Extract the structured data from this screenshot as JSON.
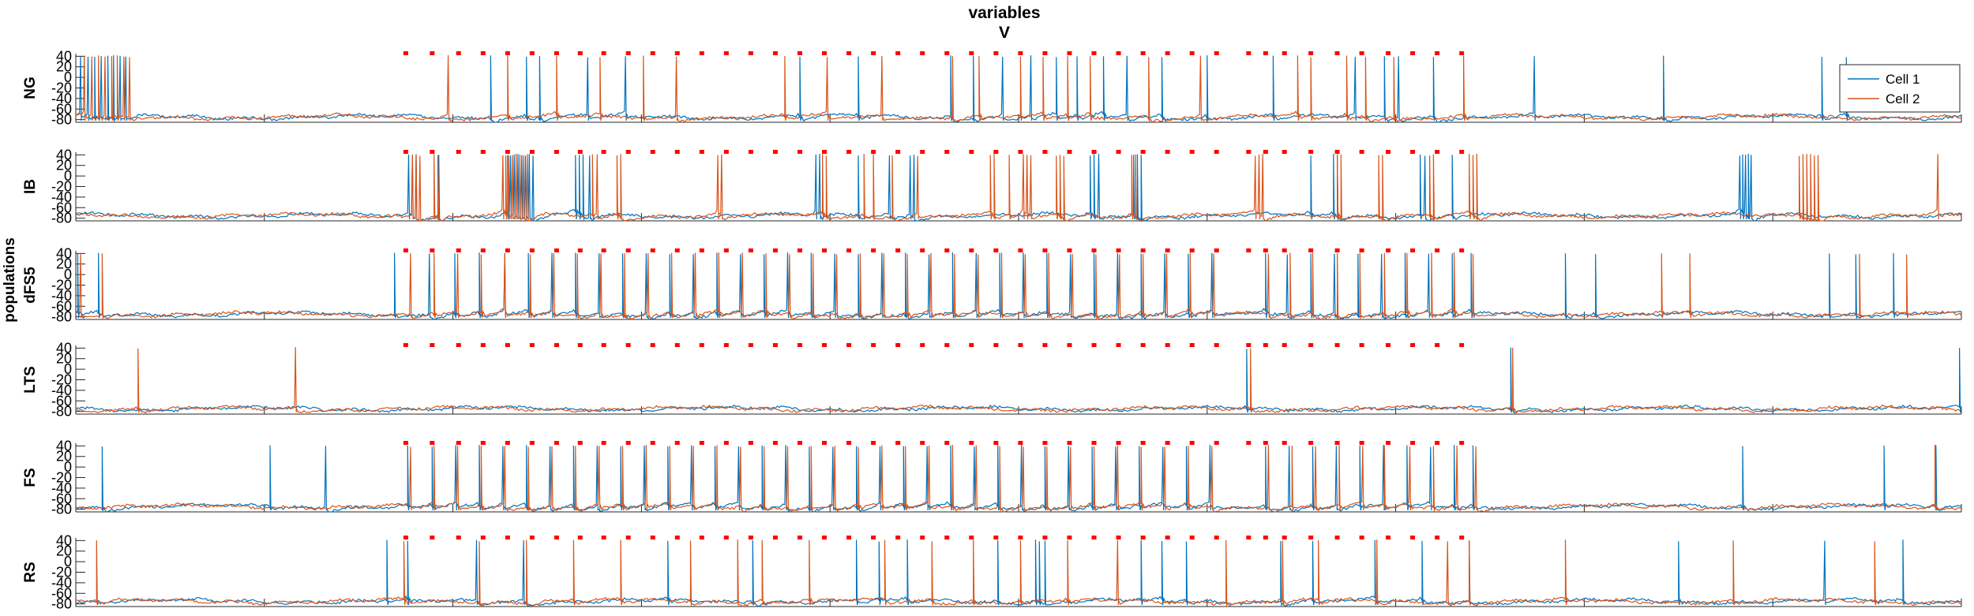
{
  "chart_data": {
    "type": "line",
    "title": "variables",
    "subtitle": "V",
    "ylabel": "populations",
    "xlim": [
      0,
      2000
    ],
    "ylim": [
      -85,
      45
    ],
    "x_ticks": [
      0,
      200,
      400,
      600,
      800,
      1000,
      1200,
      1400,
      1600,
      1800,
      2000
    ],
    "y_ticks": [
      40,
      20,
      0,
      -20,
      -40,
      -60,
      -80
    ],
    "legend": {
      "placement": "top-right",
      "entries": [
        "Cell 1",
        "Cell 2"
      ]
    },
    "colors": {
      "Cell 1": "#0072BD",
      "Cell 2": "#D95319",
      "markers": "#ff0000"
    },
    "panels": [
      {
        "name": "NG",
        "markers": [
          350,
          378,
          406,
          432,
          458,
          484,
          510,
          535,
          560,
          586,
          612,
          638,
          664,
          690,
          716,
          742,
          768,
          794,
          820,
          846,
          872,
          898,
          924,
          950,
          976,
          1002,
          1028,
          1054,
          1080,
          1106,
          1132,
          1158,
          1184,
          1210,
          1244,
          1262,
          1282,
          1310,
          1338,
          1364,
          1392,
          1418,
          1444,
          1470
        ],
        "series": [
          {
            "name": "Cell 1",
            "spikes": [
              5,
              13,
              20,
              27,
              34,
              40,
              47,
              53,
              440,
              478,
              492,
              543,
              583,
              768,
              830,
              928,
              952,
              983,
              1013,
              1040,
              1062,
              1090,
              1115,
              1152,
              1200,
              1270,
              1357,
              1388,
              1403,
              1440,
              1547,
              1684,
              1852,
              1878
            ]
          },
          {
            "name": "Cell 2",
            "spikes": [
              9,
              17,
              24,
              31,
              38,
              44,
              51,
              57,
              395,
              458,
              510,
              556,
              602,
              637,
              752,
              797,
              855,
              930,
              958,
              1002,
              1026,
              1052,
              1076,
              1138,
              1193,
              1296,
              1310,
              1348,
              1368,
              1398,
              1472
            ]
          }
        ]
      },
      {
        "name": "IB",
        "markers": [
          350,
          378,
          406,
          432,
          458,
          484,
          510,
          535,
          560,
          586,
          612,
          638,
          664,
          690,
          716,
          742,
          768,
          794,
          820,
          846,
          872,
          898,
          924,
          950,
          976,
          1002,
          1028,
          1054,
          1080,
          1106,
          1132,
          1158,
          1184,
          1210,
          1244,
          1262,
          1282,
          1310,
          1338,
          1364,
          1392,
          1418,
          1444,
          1470
        ],
        "series": [
          {
            "name": "Cell 1",
            "spikes": [
              353,
              357,
              361,
              385,
              458,
              461,
              465,
              469,
              473,
              477,
              481,
              485,
              530,
              534,
              538,
              545,
              785,
              789,
              830,
              863,
              885,
              889,
              1076,
              1080,
              1085,
              1122,
              1126,
              1130,
              1310,
              1334,
              1338,
              1426,
              1431,
              1460,
              1765,
              1768,
              1771,
              1774,
              1777
            ]
          },
          {
            "name": "Cell 2",
            "spikes": [
              357,
              361,
              365,
              380,
              384,
              453,
              456,
              459,
              463,
              467,
              471,
              475,
              479,
              548,
              553,
              574,
              578,
              681,
              685,
              792,
              796,
              836,
              846,
              866,
              893,
              970,
              974,
              990,
              1005,
              1009,
              1013,
              1040,
              1044,
              1048,
              1120,
              1124,
              1251,
              1255,
              1259,
              1338,
              1342,
              1382,
              1386,
              1436,
              1440,
              1478,
              1482,
              1486,
              1828,
              1832,
              1836,
              1840,
              1844,
              1848,
              1975
            ]
          }
        ]
      },
      {
        "name": "dFS5",
        "markers": [
          350,
          378,
          406,
          432,
          458,
          484,
          510,
          535,
          560,
          586,
          612,
          638,
          664,
          690,
          716,
          742,
          768,
          794,
          820,
          846,
          872,
          898,
          924,
          950,
          976,
          1002,
          1028,
          1054,
          1080,
          1106,
          1132,
          1158,
          1184,
          1210,
          1244,
          1262,
          1282,
          1310,
          1338,
          1364,
          1392,
          1418,
          1444,
          1470
        ],
        "series": [
          {
            "name": "Cell 1",
            "spikes": [
              2,
              24,
              338,
              375,
              402,
              428,
              455,
              480,
              505,
              530,
              555,
              580,
              605,
              630,
              655,
              680,
              705,
              730,
              755,
              780,
              805,
              830,
              855,
              880,
              905,
              930,
              955,
              980,
              1005,
              1030,
              1055,
              1080,
              1105,
              1130,
              1155,
              1180,
              1205,
              1262,
              1285,
              1310,
              1335,
              1360,
              1385,
              1410,
              1435,
              1460,
              1480,
              1580,
              1612,
              1860,
              1888,
              1928
            ]
          },
          {
            "name": "Cell 2",
            "spikes": [
              5,
              28,
              355,
              380,
              405,
              430,
              455,
              482,
              507,
              532,
              557,
              582,
              607,
              632,
              657,
              682,
              707,
              732,
              757,
              782,
              807,
              832,
              857,
              882,
              907,
              932,
              957,
              982,
              1007,
              1032,
              1057,
              1082,
              1107,
              1132,
              1157,
              1182,
              1207,
              1265,
              1288,
              1312,
              1338,
              1362,
              1388,
              1412,
              1438,
              1462,
              1482,
              1682,
              1712,
              1892,
              1942
            ]
          }
        ]
      },
      {
        "name": "LTS",
        "markers": [
          350,
          378,
          406,
          432,
          458,
          484,
          510,
          535,
          560,
          586,
          612,
          638,
          664,
          690,
          716,
          742,
          768,
          794,
          820,
          846,
          872,
          898,
          924,
          950,
          976,
          1002,
          1028,
          1054,
          1080,
          1106,
          1132,
          1158,
          1184,
          1210,
          1244,
          1262,
          1282,
          1310,
          1338,
          1364,
          1392,
          1418,
          1444,
          1470
        ],
        "series": [
          {
            "name": "Cell 1",
            "spikes": [
              1242,
              1522,
              1998
            ]
          },
          {
            "name": "Cell 2",
            "spikes": [
              66,
              233,
              1246,
              1524
            ]
          }
        ]
      },
      {
        "name": "FS",
        "markers": [
          350,
          378,
          406,
          432,
          458,
          484,
          510,
          535,
          560,
          586,
          612,
          638,
          664,
          690,
          716,
          742,
          768,
          794,
          820,
          846,
          872,
          898,
          924,
          950,
          976,
          1002,
          1028,
          1054,
          1080,
          1106,
          1132,
          1158,
          1184,
          1210,
          1244,
          1262,
          1282,
          1310,
          1338,
          1364,
          1392,
          1418,
          1444,
          1470
        ],
        "series": [
          {
            "name": "Cell 1",
            "spikes": [
              28,
              206,
              265,
              352,
              378,
              403,
              428,
              453,
              478,
              503,
              528,
              553,
              578,
              603,
              628,
              653,
              678,
              703,
              728,
              753,
              778,
              803,
              828,
              853,
              878,
              903,
              928,
              953,
              978,
              1003,
              1028,
              1053,
              1078,
              1103,
              1128,
              1153,
              1178,
              1203,
              1262,
              1287,
              1312,
              1337,
              1362,
              1387,
              1412,
              1437,
              1462,
              1482,
              1768,
              1918,
              1973
            ]
          },
          {
            "name": "Cell 2",
            "spikes": [
              355,
              380,
              405,
              430,
              455,
              480,
              505,
              530,
              555,
              580,
              605,
              630,
              655,
              680,
              705,
              730,
              755,
              780,
              805,
              830,
              855,
              880,
              905,
              930,
              955,
              980,
              1005,
              1030,
              1055,
              1080,
              1105,
              1130,
              1155,
              1180,
              1205,
              1265,
              1290,
              1315,
              1340,
              1365,
              1388,
              1415,
              1440,
              1465,
              1485,
              1972
            ]
          }
        ]
      },
      {
        "name": "RS",
        "markers": [
          350,
          378,
          406,
          432,
          458,
          484,
          510,
          535,
          560,
          586,
          612,
          638,
          664,
          690,
          716,
          742,
          768,
          794,
          820,
          846,
          872,
          898,
          924,
          950,
          976,
          1002,
          1028,
          1054,
          1080,
          1106,
          1132,
          1158,
          1184,
          1210,
          1244,
          1262,
          1282,
          1310,
          1338,
          1364,
          1392,
          1418,
          1444,
          1470
        ],
        "series": [
          {
            "name": "Cell 1",
            "spikes": [
              330,
              352,
              425,
              475,
              628,
              718,
              828,
              852,
              882,
              978,
              1018,
              1022,
              1028,
              1130,
              1152,
              1178,
              1278,
              1312,
              1378,
              1428,
              1478,
              1700,
              1855,
              1938
            ]
          },
          {
            "name": "Cell 2",
            "spikes": [
              22,
              348,
              428,
              478,
              528,
              578,
              652,
              702,
              728,
              778,
              858,
              908,
              952,
              1002,
              1052,
              1105,
              1220,
              1280,
              1318,
              1380,
              1455,
              1478,
              1580,
              1758,
              1908
            ]
          }
        ]
      }
    ]
  }
}
